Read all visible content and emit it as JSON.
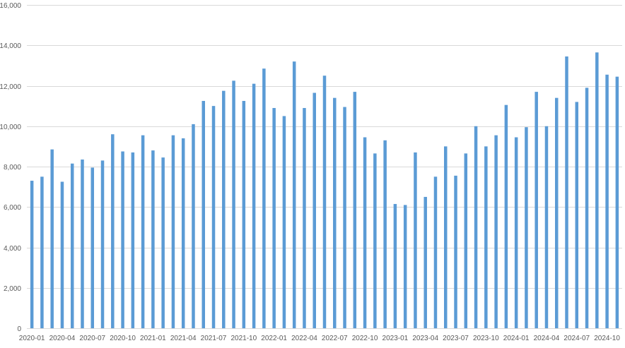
{
  "chart_data": {
    "type": "bar",
    "title": "",
    "xlabel": "",
    "ylabel": "",
    "ylim": [
      0,
      16000
    ],
    "yticks": [
      0,
      2000,
      4000,
      6000,
      8000,
      10000,
      12000,
      14000,
      16000
    ],
    "ytick_labels": [
      "0",
      "2,000",
      "4,000",
      "6,000",
      "8,000",
      "10,000",
      "12,000",
      "14,000",
      "16,000"
    ],
    "grid": true,
    "legend": "none",
    "bar_color": "#5B9BD5",
    "gridline_color": "#D9D9D9",
    "categories": [
      "2020-01",
      "2020-02",
      "2020-03",
      "2020-04",
      "2020-05",
      "2020-06",
      "2020-07",
      "2020-08",
      "2020-09",
      "2020-10",
      "2020-11",
      "2020-12",
      "2021-01",
      "2021-02",
      "2021-03",
      "2021-04",
      "2021-05",
      "2021-06",
      "2021-07",
      "2021-08",
      "2021-09",
      "2021-10",
      "2021-11",
      "2021-12",
      "2022-01",
      "2022-02",
      "2022-03",
      "2022-04",
      "2022-05",
      "2022-06",
      "2022-07",
      "2022-08",
      "2022-09",
      "2022-10",
      "2022-11",
      "2022-12",
      "2023-01",
      "2023-02",
      "2023-03",
      "2023-04",
      "2023-05",
      "2023-06",
      "2023-07",
      "2023-08",
      "2023-09",
      "2023-10",
      "2023-11",
      "2023-12",
      "2024-01",
      "2024-02",
      "2024-03",
      "2024-04",
      "2024-05",
      "2024-06",
      "2024-07",
      "2024-08",
      "2024-09",
      "2024-10",
      "2024-11"
    ],
    "x_tick_labels": [
      "2020-01",
      "2020-04",
      "2020-07",
      "2020-10",
      "2021-01",
      "2021-04",
      "2021-07",
      "2021-10",
      "2022-01",
      "2022-04",
      "2022-07",
      "2022-10",
      "2023-01",
      "2023-04",
      "2023-07",
      "2023-10",
      "2024-01",
      "2024-04",
      "2024-07",
      "2024-10"
    ],
    "values": [
      7300,
      7500,
      8850,
      7250,
      8150,
      8350,
      7950,
      8300,
      9600,
      8750,
      8700,
      9550,
      8800,
      8450,
      9550,
      9400,
      10100,
      11250,
      11000,
      11750,
      12250,
      11250,
      12100,
      12850,
      10900,
      10500,
      13200,
      10900,
      11650,
      12500,
      11400,
      10950,
      11700,
      9450,
      8650,
      9300,
      6150,
      6100,
      8700,
      6500,
      7500,
      9000,
      7550,
      8650,
      10000,
      9000,
      9550,
      11050,
      9450,
      9950,
      11700,
      10000,
      11400,
      13450,
      11200,
      11900,
      13650,
      12550,
      12450
    ]
  }
}
